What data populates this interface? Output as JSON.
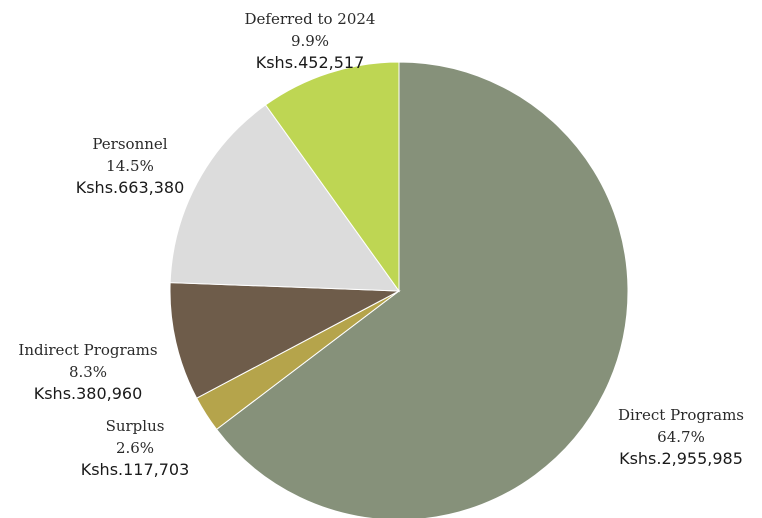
{
  "chart_data": {
    "type": "pie",
    "title": "",
    "start": "12 o'clock",
    "direction": "clockwise",
    "slices": [
      {
        "label": "Direct Programs",
        "percent_label": "64.7%",
        "amount_label": "Kshs.2,955,985",
        "value": 2955985,
        "color": "#86917a"
      },
      {
        "label": "Surplus",
        "percent_label": "2.6%",
        "amount_label": "Kshs.117,703",
        "value": 117703,
        "color": "#b5a44b"
      },
      {
        "label": "Indirect Programs",
        "percent_label": "8.3%",
        "amount_label": "Kshs.380,960",
        "value": 380960,
        "color": "#6e5c4a"
      },
      {
        "label": "Personnel",
        "percent_label": "14.5%",
        "amount_label": "Kshs.663,380",
        "value": 663380,
        "color": "#dcdcdc"
      },
      {
        "label": "Deferred to 2024",
        "percent_label": "9.9%",
        "amount_label": "Kshs.452,517",
        "value": 452517,
        "color": "#bed653"
      }
    ]
  }
}
